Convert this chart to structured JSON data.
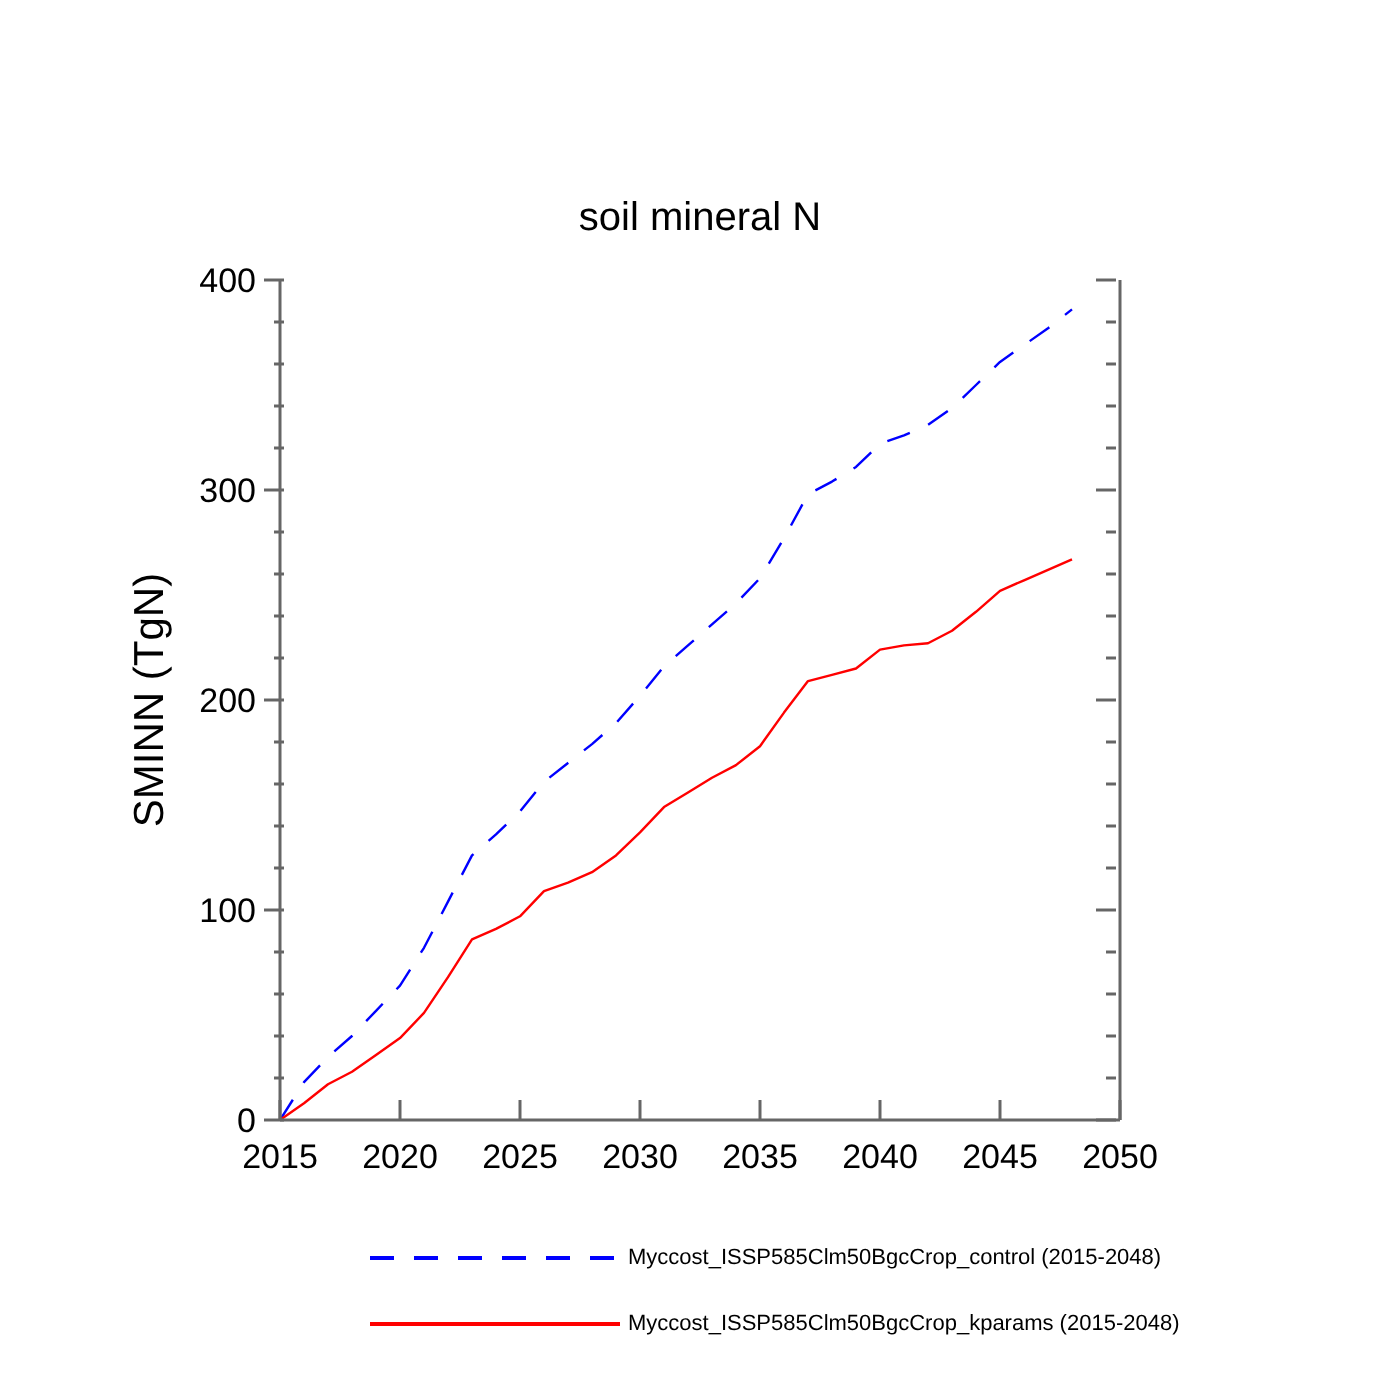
{
  "chart_data": {
    "type": "line",
    "title": "soil mineral N",
    "ylabel": "SMINN  (TgN)",
    "x": [
      2015,
      2016,
      2017,
      2018,
      2019,
      2020,
      2021,
      2022,
      2023,
      2024,
      2025,
      2026,
      2027,
      2028,
      2029,
      2030,
      2031,
      2032,
      2033,
      2034,
      2035,
      2036,
      2037,
      2038,
      2039,
      2040,
      2041,
      2042,
      2043,
      2044,
      2045,
      2046,
      2047,
      2048
    ],
    "xlim": [
      2015,
      2050
    ],
    "xticks": [
      2015,
      2020,
      2025,
      2030,
      2035,
      2040,
      2045,
      2050
    ],
    "ylim": [
      0,
      400
    ],
    "yticks": [
      0,
      {
        "value": 20,
        "label": null
      },
      {
        "value": 40,
        "label": null
      },
      {
        "value": 60,
        "label": null
      },
      {
        "value": 80,
        "label": null
      },
      100,
      {
        "value": 120,
        "label": null
      },
      {
        "value": 140,
        "label": null
      },
      {
        "value": 160,
        "label": null
      },
      {
        "value": 180,
        "label": null
      },
      200,
      {
        "value": 220,
        "label": null
      },
      {
        "value": 240,
        "label": null
      },
      {
        "value": 260,
        "label": null
      },
      {
        "value": 280,
        "label": null
      },
      300,
      {
        "value": 320,
        "label": null
      },
      {
        "value": 340,
        "label": null
      },
      {
        "value": 360,
        "label": null
      },
      {
        "value": 380,
        "label": null
      },
      400
    ],
    "grid": false,
    "legend": "bottom",
    "marker": "none",
    "series": [
      {
        "name": "Myccost_ISSP585Clm50BgcCrop_control (2015-2048)",
        "color": "#0000ff",
        "line_style": "dashed",
        "values": [
          0,
          18,
          30,
          40,
          52,
          64,
          82,
          104,
          126,
          136,
          147,
          161,
          170,
          179,
          189,
          202,
          216,
          226,
          236,
          246,
          258,
          277,
          298,
          304,
          311,
          322,
          326,
          331,
          339,
          350,
          361,
          369,
          377,
          386
        ]
      },
      {
        "name": "Myccost_ISSP585Clm50BgcCrop_kparams (2015-2048)",
        "color": "#ff0000",
        "line_style": "solid",
        "values": [
          0,
          8,
          17,
          23,
          31,
          39,
          51,
          68,
          86,
          91,
          97,
          109,
          113,
          118,
          126,
          137,
          149,
          156,
          163,
          169,
          178,
          194,
          209,
          212,
          215,
          224,
          226,
          227,
          233,
          242,
          252,
          257,
          262,
          267
        ]
      }
    ]
  }
}
